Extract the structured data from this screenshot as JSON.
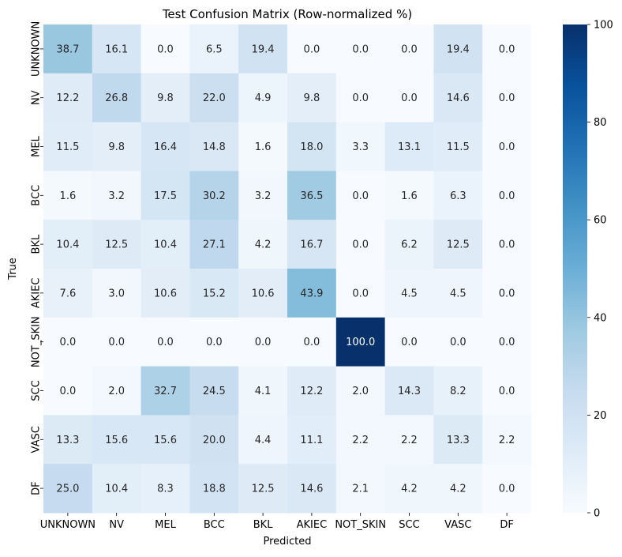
{
  "chart_data": {
    "type": "heatmap",
    "title": "Test Confusion Matrix (Row-normalized %)",
    "xlabel": "Predicted",
    "ylabel": "True",
    "x_categories": [
      "UNKNOWN",
      "NV",
      "MEL",
      "BCC",
      "BKL",
      "AKIEC",
      "NOT_SKIN",
      "SCC",
      "VASC",
      "DF"
    ],
    "y_categories": [
      "UNKNOWN",
      "NV",
      "MEL",
      "BCC",
      "BKL",
      "AKIEC",
      "NOT_SKIN",
      "SCC",
      "VASC",
      "DF"
    ],
    "values": [
      [
        38.7,
        16.1,
        0.0,
        6.5,
        19.4,
        0.0,
        0.0,
        0.0,
        19.4,
        0.0
      ],
      [
        12.2,
        26.8,
        9.8,
        22.0,
        4.9,
        9.8,
        0.0,
        0.0,
        14.6,
        0.0
      ],
      [
        11.5,
        9.8,
        16.4,
        14.8,
        1.6,
        18.0,
        3.3,
        13.1,
        11.5,
        0.0
      ],
      [
        1.6,
        3.2,
        17.5,
        30.2,
        3.2,
        36.5,
        0.0,
        1.6,
        6.3,
        0.0
      ],
      [
        10.4,
        12.5,
        10.4,
        27.1,
        4.2,
        16.7,
        0.0,
        6.2,
        12.5,
        0.0
      ],
      [
        7.6,
        3.0,
        10.6,
        15.2,
        10.6,
        43.9,
        0.0,
        4.5,
        4.5,
        0.0
      ],
      [
        0.0,
        0.0,
        0.0,
        0.0,
        0.0,
        0.0,
        100.0,
        0.0,
        0.0,
        0.0
      ],
      [
        0.0,
        2.0,
        32.7,
        24.5,
        4.1,
        12.2,
        2.0,
        14.3,
        8.2,
        0.0
      ],
      [
        13.3,
        15.6,
        15.6,
        20.0,
        4.4,
        11.1,
        2.2,
        2.2,
        13.3,
        2.2
      ],
      [
        25.0,
        10.4,
        8.3,
        18.8,
        12.5,
        14.6,
        2.1,
        4.2,
        4.2,
        0.0
      ]
    ],
    "colormap": "Blues",
    "color_range": [
      0,
      100
    ],
    "colorbar_ticks": [
      0,
      20,
      40,
      60,
      80,
      100
    ],
    "grid": false,
    "legend": "colorbar-right"
  }
}
